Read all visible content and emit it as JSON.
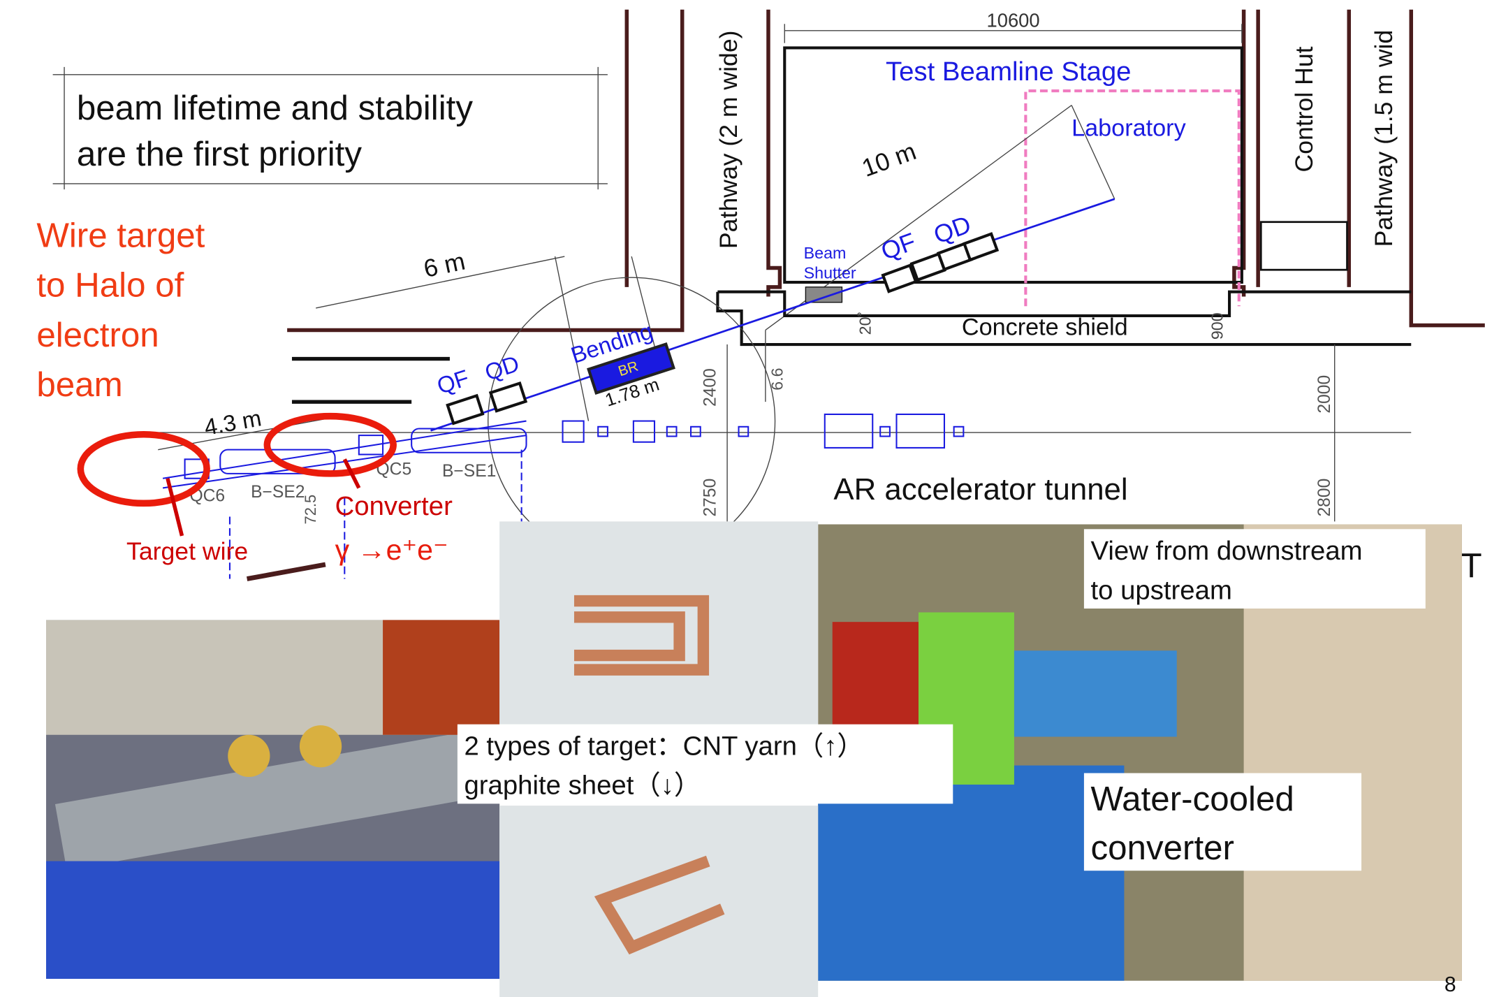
{
  "note": [
    "beam lifetime and stability",
    "are the first priority"
  ],
  "wire_target_note": [
    "Wire target",
    "to Halo of",
    "electron",
    "beam"
  ],
  "layout": {
    "dimension_top": "10600",
    "stage": "Test Beamline Stage",
    "laboratory": "Laboratory",
    "distance_10m": "10 m",
    "pathway_left": "Pathway (2 m wide)",
    "control_hut": "Control Hut",
    "pathway_right": "Pathway (1.5 m wid",
    "beam_shutter": [
      "Beam",
      "Shutter"
    ],
    "stage_qf": "QF",
    "stage_qd": "QD",
    "distance_6m": "6 m",
    "bending": "Bending",
    "br": "BR",
    "br_length": "1.78 m",
    "line_qf": "QF",
    "line_qd": "QD",
    "concrete_shield": "Concrete shield",
    "angle": "20˚",
    "dim_900": "900",
    "dim_2400": "2400",
    "dim_6_6": "6.6",
    "dim_2000": "2000",
    "distance_4_3m": "4.3 m",
    "qc5": "QC5",
    "bse1": "B−SE1",
    "qc6": "QC6",
    "bse2": "B−SE2",
    "dim_72_5": "72.5",
    "tunnel": "AR accelerator tunnel",
    "dim_2750": "2750",
    "dim_2800": "2800",
    "edge_letter": "T"
  },
  "annotations": {
    "converter": "Converter",
    "reaction": "γ →e⁺e⁻",
    "target_wire": "Target wire"
  },
  "captions": {
    "view": [
      "View from downstream",
      "to upstream"
    ],
    "target_types": [
      "2 types of target：CNT yarn（↑）",
      "graphite sheet（↓）"
    ],
    "converter": [
      "Water-cooled",
      "converter"
    ]
  },
  "page_number": "8"
}
